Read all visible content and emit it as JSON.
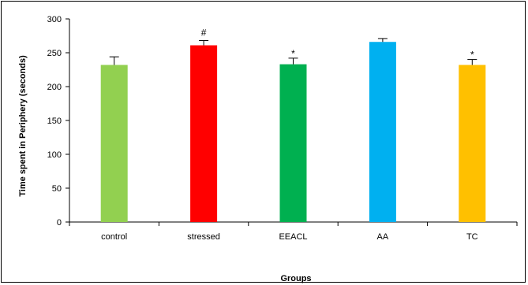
{
  "chart_data": {
    "type": "bar",
    "title": "",
    "xlabel": "Groups",
    "ylabel": "Time spent in Periphery (seconds)",
    "ylim": [
      0,
      300
    ],
    "yticks": [
      0,
      50,
      100,
      150,
      200,
      250,
      300
    ],
    "yticks_text": [
      "0",
      "50",
      "100",
      "150",
      "200",
      "250",
      "300"
    ],
    "categories": [
      "control",
      "stressed",
      "EEACL",
      "AA",
      "TC"
    ],
    "values": [
      232,
      261,
      233,
      266,
      232
    ],
    "errors": [
      12,
      7,
      9,
      5,
      8
    ],
    "annotations": [
      "",
      "#",
      "*",
      "",
      "*"
    ],
    "colors": [
      "#92D050",
      "#FF0000",
      "#00B050",
      "#00B0F0",
      "#FFC000"
    ],
    "grid": false,
    "legend": "none"
  }
}
